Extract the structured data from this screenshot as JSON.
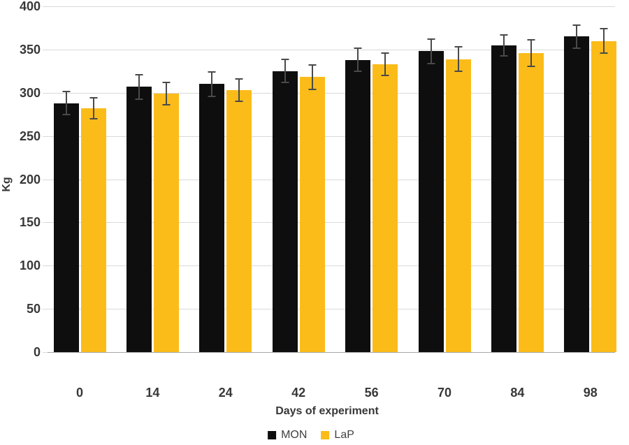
{
  "chart_data": {
    "type": "bar",
    "title": "",
    "xlabel": "Days of experiment",
    "ylabel": "Kg",
    "categories": [
      "0",
      "14",
      "24",
      "42",
      "56",
      "70",
      "84",
      "98"
    ],
    "series": [
      {
        "name": "MON",
        "color": "#0e0e0e",
        "values": [
          288,
          307,
          310,
          325,
          338,
          348,
          355,
          365
        ],
        "errors": [
          14,
          15,
          15,
          14,
          14,
          15,
          13,
          14
        ]
      },
      {
        "name": "LaP",
        "color": "#fbbc1a",
        "values": [
          282,
          299,
          303,
          318,
          333,
          339,
          346,
          360
        ],
        "errors": [
          13,
          14,
          14,
          15,
          14,
          15,
          16,
          15
        ]
      }
    ],
    "ylim": [
      0,
      400
    ],
    "ytick_step": 50,
    "yticks": [
      0,
      50,
      100,
      150,
      200,
      250,
      300,
      350,
      400
    ],
    "grid": true,
    "error_bars": true,
    "legend_position": "bottom"
  },
  "colors": {
    "grid": "#d9d9d9",
    "axis_line": "#a6a6a6",
    "text": "#383838",
    "error_bar": "#4a4a4a",
    "background": "#ffffff"
  }
}
